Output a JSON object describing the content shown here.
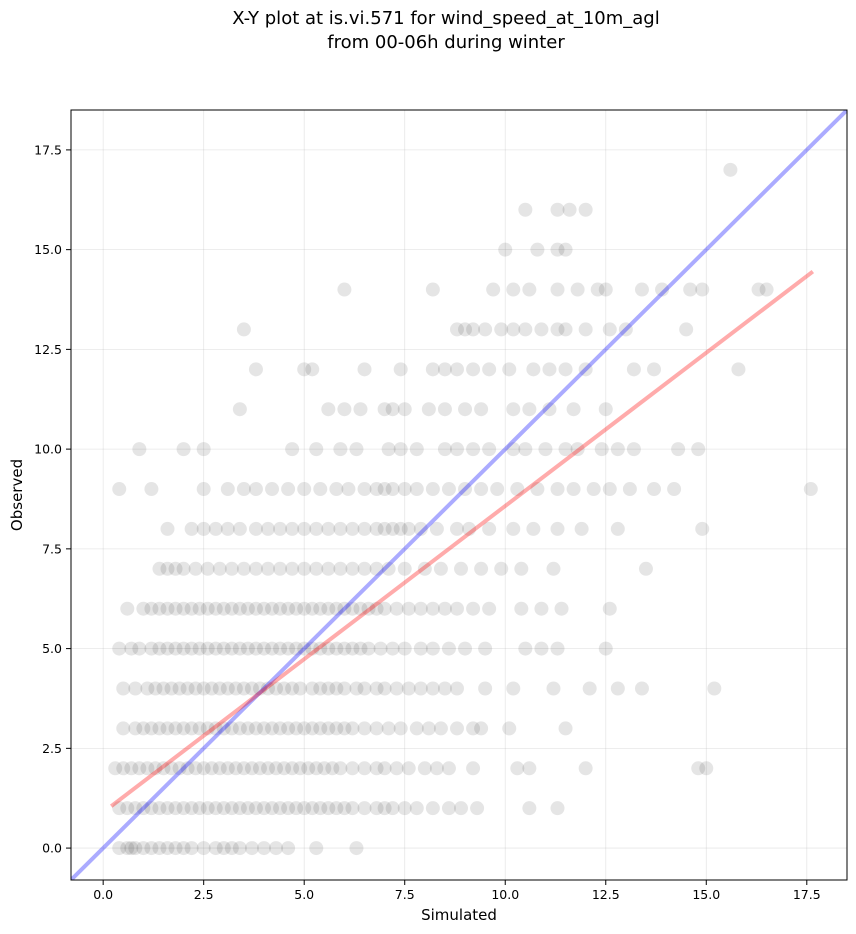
{
  "chart_data": {
    "type": "scatter",
    "title_lines": [
      "X-Y plot at is.vi.571 for wind_speed_at_10m_agl",
      "from 00-06h during winter"
    ],
    "xlabel": "Simulated",
    "ylabel": "Observed",
    "xlim": [
      -0.8,
      18.5
    ],
    "ylim": [
      -0.8,
      18.5
    ],
    "xticks": [
      "0.0",
      "2.5",
      "5.0",
      "7.5",
      "10.0",
      "12.5",
      "15.0",
      "17.5"
    ],
    "yticks": [
      "0.0",
      "2.5",
      "5.0",
      "7.5",
      "10.0",
      "12.5",
      "15.0",
      "17.5"
    ],
    "grid": true,
    "point_color": "#000000",
    "point_opacity": 0.1,
    "fit_line": {
      "color": "#ff0000",
      "x": [
        0.2,
        17.65
      ],
      "y": [
        1.05,
        14.45
      ]
    },
    "identity_line": {
      "color": "#0000ff",
      "x": [
        -0.8,
        18.5
      ],
      "y": [
        -0.8,
        18.5
      ]
    },
    "points_by_observed": [
      {
        "y": 0,
        "x": [
          0.4,
          0.6,
          0.7,
          0.8,
          1.0,
          1.2,
          1.4,
          1.6,
          1.8,
          2.0,
          2.2,
          2.5,
          2.8,
          3.0,
          3.2,
          3.4,
          3.7,
          4.0,
          4.3,
          4.6,
          5.3,
          6.3
        ]
      },
      {
        "y": 1,
        "x": [
          0.4,
          0.6,
          0.8,
          1.0,
          1.2,
          1.4,
          1.6,
          1.8,
          2.0,
          2.2,
          2.4,
          2.6,
          2.8,
          3.0,
          3.2,
          3.4,
          3.6,
          3.8,
          4.0,
          4.2,
          4.4,
          4.6,
          4.8,
          5.0,
          5.2,
          5.4,
          5.6,
          5.8,
          6.0,
          6.2,
          6.5,
          6.8,
          7.0,
          7.2,
          7.5,
          7.8,
          8.2,
          8.6,
          8.9,
          9.3,
          10.6,
          11.3
        ]
      },
      {
        "y": 2,
        "x": [
          0.3,
          0.5,
          0.7,
          0.9,
          1.1,
          1.3,
          1.5,
          1.7,
          1.9,
          2.1,
          2.3,
          2.5,
          2.7,
          2.9,
          3.1,
          3.3,
          3.5,
          3.7,
          3.9,
          4.1,
          4.3,
          4.5,
          4.7,
          4.9,
          5.1,
          5.3,
          5.5,
          5.7,
          5.9,
          6.2,
          6.5,
          6.8,
          7.0,
          7.3,
          7.6,
          8.0,
          8.3,
          8.6,
          9.2,
          10.3,
          10.6,
          12.0,
          14.8,
          15.0
        ]
      },
      {
        "y": 3,
        "x": [
          0.5,
          0.8,
          1.0,
          1.2,
          1.4,
          1.6,
          1.8,
          2.0,
          2.2,
          2.4,
          2.6,
          2.8,
          3.0,
          3.2,
          3.4,
          3.6,
          3.8,
          4.0,
          4.2,
          4.4,
          4.6,
          4.8,
          5.0,
          5.2,
          5.4,
          5.6,
          5.8,
          6.0,
          6.2,
          6.5,
          6.8,
          7.1,
          7.4,
          7.8,
          8.1,
          8.4,
          8.8,
          9.2,
          9.4,
          10.1,
          11.5
        ]
      },
      {
        "y": 4,
        "x": [
          0.5,
          0.8,
          1.1,
          1.3,
          1.5,
          1.7,
          1.9,
          2.1,
          2.3,
          2.5,
          2.7,
          2.9,
          3.1,
          3.3,
          3.5,
          3.7,
          3.9,
          4.1,
          4.3,
          4.5,
          4.7,
          4.9,
          5.2,
          5.4,
          5.6,
          5.8,
          6.0,
          6.3,
          6.5,
          6.8,
          7.0,
          7.3,
          7.6,
          7.9,
          8.2,
          8.5,
          8.8,
          9.5,
          10.2,
          11.2,
          12.1,
          12.8,
          13.4,
          15.2
        ]
      },
      {
        "y": 5,
        "x": [
          0.4,
          0.7,
          0.9,
          1.2,
          1.4,
          1.6,
          1.8,
          2.0,
          2.2,
          2.4,
          2.6,
          2.8,
          3.0,
          3.2,
          3.4,
          3.6,
          3.8,
          4.0,
          4.2,
          4.4,
          4.6,
          4.8,
          5.0,
          5.2,
          5.4,
          5.6,
          5.8,
          6.0,
          6.2,
          6.4,
          6.6,
          6.9,
          7.2,
          7.5,
          7.9,
          8.2,
          8.6,
          9.0,
          9.5,
          10.5,
          10.9,
          11.3,
          12.5
        ]
      },
      {
        "y": 6,
        "x": [
          0.6,
          1.0,
          1.2,
          1.4,
          1.6,
          1.8,
          2.0,
          2.2,
          2.4,
          2.6,
          2.8,
          3.0,
          3.2,
          3.4,
          3.6,
          3.8,
          4.0,
          4.2,
          4.4,
          4.6,
          4.8,
          5.0,
          5.2,
          5.4,
          5.6,
          5.8,
          6.0,
          6.2,
          6.4,
          6.6,
          6.8,
          7.0,
          7.3,
          7.6,
          7.9,
          8.2,
          8.5,
          8.8,
          9.2,
          9.6,
          10.4,
          10.9,
          11.4,
          12.6
        ]
      },
      {
        "y": 7,
        "x": [
          1.4,
          1.6,
          1.8,
          2.0,
          2.3,
          2.6,
          2.9,
          3.2,
          3.5,
          3.8,
          4.1,
          4.4,
          4.7,
          5.0,
          5.3,
          5.6,
          5.9,
          6.2,
          6.5,
          6.8,
          7.1,
          7.5,
          8.0,
          8.4,
          8.9,
          9.4,
          9.9,
          10.4,
          11.2,
          13.5
        ]
      },
      {
        "y": 8,
        "x": [
          1.6,
          2.2,
          2.5,
          2.8,
          3.1,
          3.4,
          3.8,
          4.1,
          4.4,
          4.7,
          5.0,
          5.3,
          5.6,
          5.9,
          6.2,
          6.5,
          6.8,
          7.0,
          7.2,
          7.4,
          7.6,
          7.9,
          8.3,
          8.8,
          9.1,
          9.6,
          10.2,
          10.7,
          11.3,
          11.9,
          12.8,
          14.9
        ]
      },
      {
        "y": 9,
        "x": [
          0.4,
          1.2,
          2.5,
          3.1,
          3.5,
          3.8,
          4.2,
          4.6,
          5.0,
          5.4,
          5.8,
          6.1,
          6.5,
          6.8,
          7.0,
          7.2,
          7.5,
          7.8,
          8.2,
          8.6,
          9.0,
          9.4,
          9.8,
          10.3,
          10.8,
          11.3,
          11.7,
          12.2,
          12.6,
          13.1,
          13.7,
          14.2,
          17.6
        ]
      },
      {
        "y": 10,
        "x": [
          0.9,
          2.0,
          2.5,
          4.7,
          5.3,
          5.9,
          6.3,
          7.1,
          7.4,
          7.8,
          8.5,
          8.8,
          9.2,
          9.6,
          10.2,
          10.5,
          11.0,
          11.5,
          11.8,
          12.4,
          12.8,
          13.2,
          14.3,
          14.8
        ]
      },
      {
        "y": 11,
        "x": [
          3.4,
          5.6,
          6.0,
          6.4,
          7.0,
          7.2,
          7.5,
          8.1,
          8.5,
          9.0,
          9.4,
          10.2,
          10.6,
          11.1,
          11.7,
          12.5
        ]
      },
      {
        "y": 12,
        "x": [
          3.8,
          5.0,
          5.2,
          6.5,
          7.4,
          8.2,
          8.5,
          8.8,
          9.2,
          9.6,
          10.1,
          10.7,
          11.1,
          11.5,
          12.0,
          13.2,
          13.7,
          15.8
        ]
      },
      {
        "y": 13,
        "x": [
          3.5,
          8.8,
          9.0,
          9.2,
          9.5,
          9.9,
          10.2,
          10.5,
          10.9,
          11.3,
          11.5,
          12.0,
          12.6,
          13.0,
          14.5
        ]
      },
      {
        "y": 14,
        "x": [
          6.0,
          8.2,
          9.7,
          10.2,
          10.6,
          11.3,
          11.8,
          12.3,
          12.5,
          13.4,
          13.9,
          14.6,
          14.9,
          16.3,
          16.5
        ]
      },
      {
        "y": 15,
        "x": [
          10.0,
          10.8,
          11.3,
          11.5
        ]
      },
      {
        "y": 16,
        "x": [
          10.5,
          11.3,
          11.6,
          12.0
        ]
      },
      {
        "y": 17,
        "x": [
          15.6
        ]
      }
    ]
  }
}
